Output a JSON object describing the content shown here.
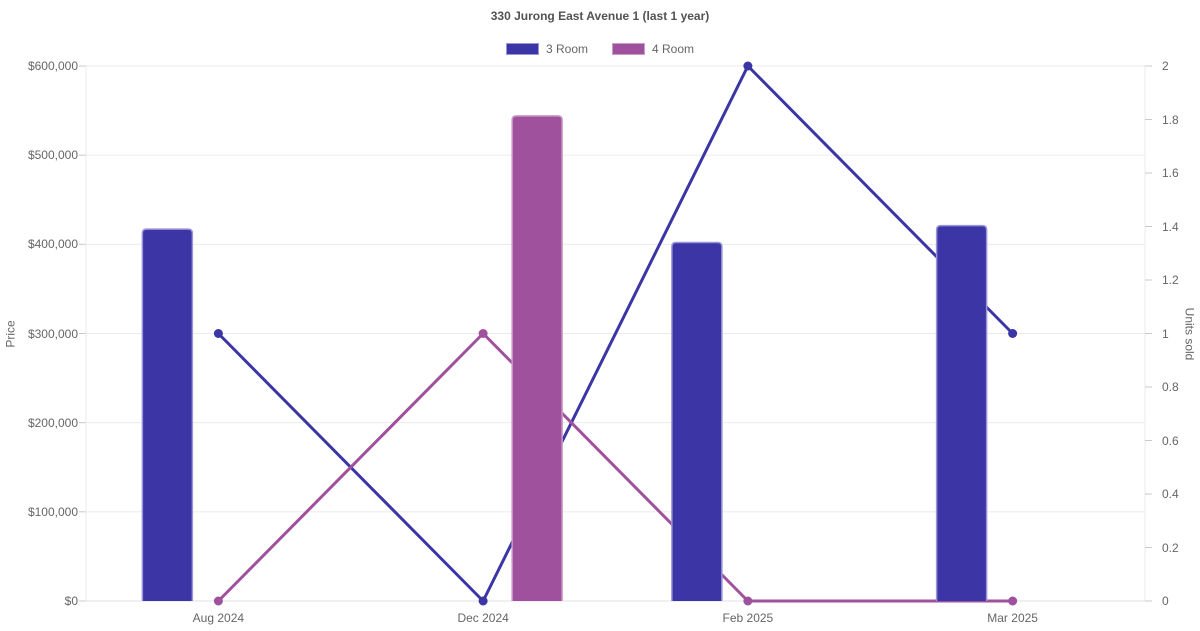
{
  "legend": [
    {
      "label": "3 Room",
      "color": "#3b35a5",
      "border_color": "#9a94d8"
    },
    {
      "label": "4 Room",
      "color": "#a0519d",
      "border_color": "#cb9cc8"
    }
  ],
  "colors": {
    "background": "#ffffff",
    "grid": "#ebebeb",
    "axis_border": "#e0e0e0",
    "tick": "#c9c9c9",
    "text": "#666666",
    "title_text": "#535353",
    "blue": "#3b35a5",
    "purple": "#a0519d"
  },
  "chart_data": {
    "type": "combo-bar-line",
    "title": "330 Jurong East Avenue 1 (last 1 year)",
    "categories": [
      "Aug 2024",
      "Dec 2024",
      "Feb 2025",
      "Mar 2025"
    ],
    "bar_series": [
      {
        "name": "3 Room",
        "axis": "left",
        "color": "#3b35a5",
        "border_color": "#9a94d8",
        "values": [
          417000,
          null,
          402000,
          421000
        ]
      },
      {
        "name": "4 Room",
        "axis": "left",
        "color": "#a0519d",
        "border_color": "#cb9cc8",
        "values": [
          null,
          544000,
          null,
          null
        ]
      }
    ],
    "line_series": [
      {
        "name": "3 Room",
        "axis": "right",
        "color": "#3b35a5",
        "values": [
          1,
          0,
          2,
          1
        ]
      },
      {
        "name": "4 Room",
        "axis": "right",
        "color": "#a0519d",
        "values": [
          0,
          1,
          0,
          0
        ]
      }
    ],
    "left_axis": {
      "label": "Price",
      "min": 0,
      "max": 600000,
      "tick_step": 100000,
      "tick_labels": [
        "$0",
        "$100,000",
        "$200,000",
        "$300,000",
        "$400,000",
        "$500,000",
        "$600,000"
      ]
    },
    "right_axis": {
      "label": "Units sold",
      "min": 0,
      "max": 2,
      "tick_step": 0.2,
      "tick_labels": [
        "0",
        "0.2",
        "0.4",
        "0.6",
        "0.8",
        "1",
        "1.2",
        "1.4",
        "1.6",
        "1.8",
        "2"
      ]
    },
    "grid": "horizontal-only",
    "legend_position": "top"
  }
}
